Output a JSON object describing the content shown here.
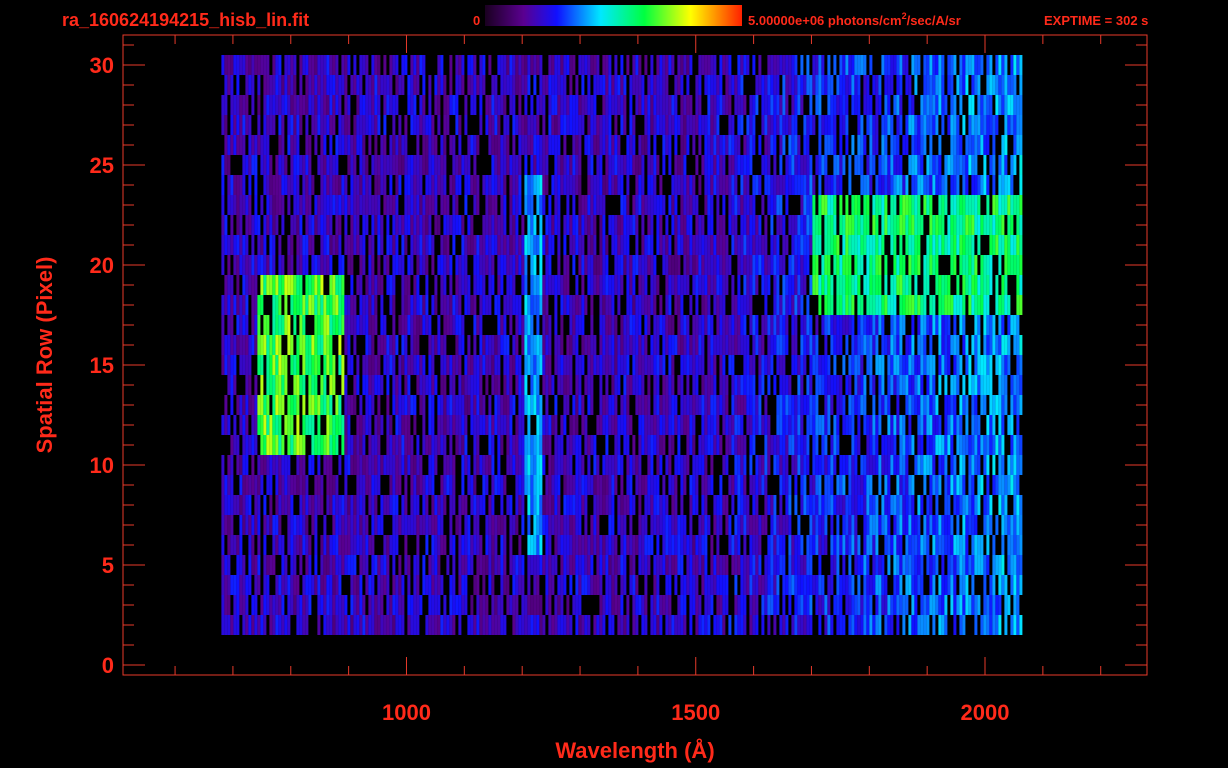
{
  "header": {
    "filename": "ra_160624194215_hisb_lin.fit",
    "colorbar_min_label": "0",
    "colorbar_max_prefix": "5.00000e+06 photons/cm",
    "colorbar_max_sup": "2",
    "colorbar_max_suffix": "/sec/A/sr",
    "exptime": "EXPTIME = 302 s"
  },
  "colors": {
    "text": "#ff2a1a",
    "axis": "#e83a2a",
    "background": "#000000"
  },
  "chart_data": {
    "type": "heatmap",
    "xlabel": "Wavelength (Å)",
    "ylabel": "Spatial Row (Pixel)",
    "xlim": [
      510,
      2280
    ],
    "ylim": [
      -0.5,
      31.5
    ],
    "x_ticks": [
      1000,
      1500,
      2000
    ],
    "y_ticks": [
      0,
      5,
      10,
      15,
      20,
      25,
      30
    ],
    "x_tick_labels": [
      "1000",
      "1500",
      "2000"
    ],
    "y_tick_labels": [
      "0",
      "5",
      "10",
      "15",
      "20",
      "25",
      "30"
    ],
    "colorbar": {
      "min": 0,
      "max": 5000000,
      "colormap": "rainbow"
    },
    "grid": false,
    "data_extent": {
      "x": [
        680,
        2060
      ],
      "rows": [
        2,
        30
      ]
    },
    "features": [
      {
        "name": "bright-band",
        "x": [
          1700,
          2060
        ],
        "rows": [
          18,
          23
        ],
        "level": 0.62
      },
      {
        "name": "lyman-alpha-line",
        "x": [
          1200,
          1230
        ],
        "rows": [
          6,
          24
        ],
        "level": 0.42
      },
      {
        "name": "bright-arc",
        "x": [
          740,
          890
        ],
        "rows": [
          11,
          19
        ],
        "level": 0.7
      }
    ]
  }
}
